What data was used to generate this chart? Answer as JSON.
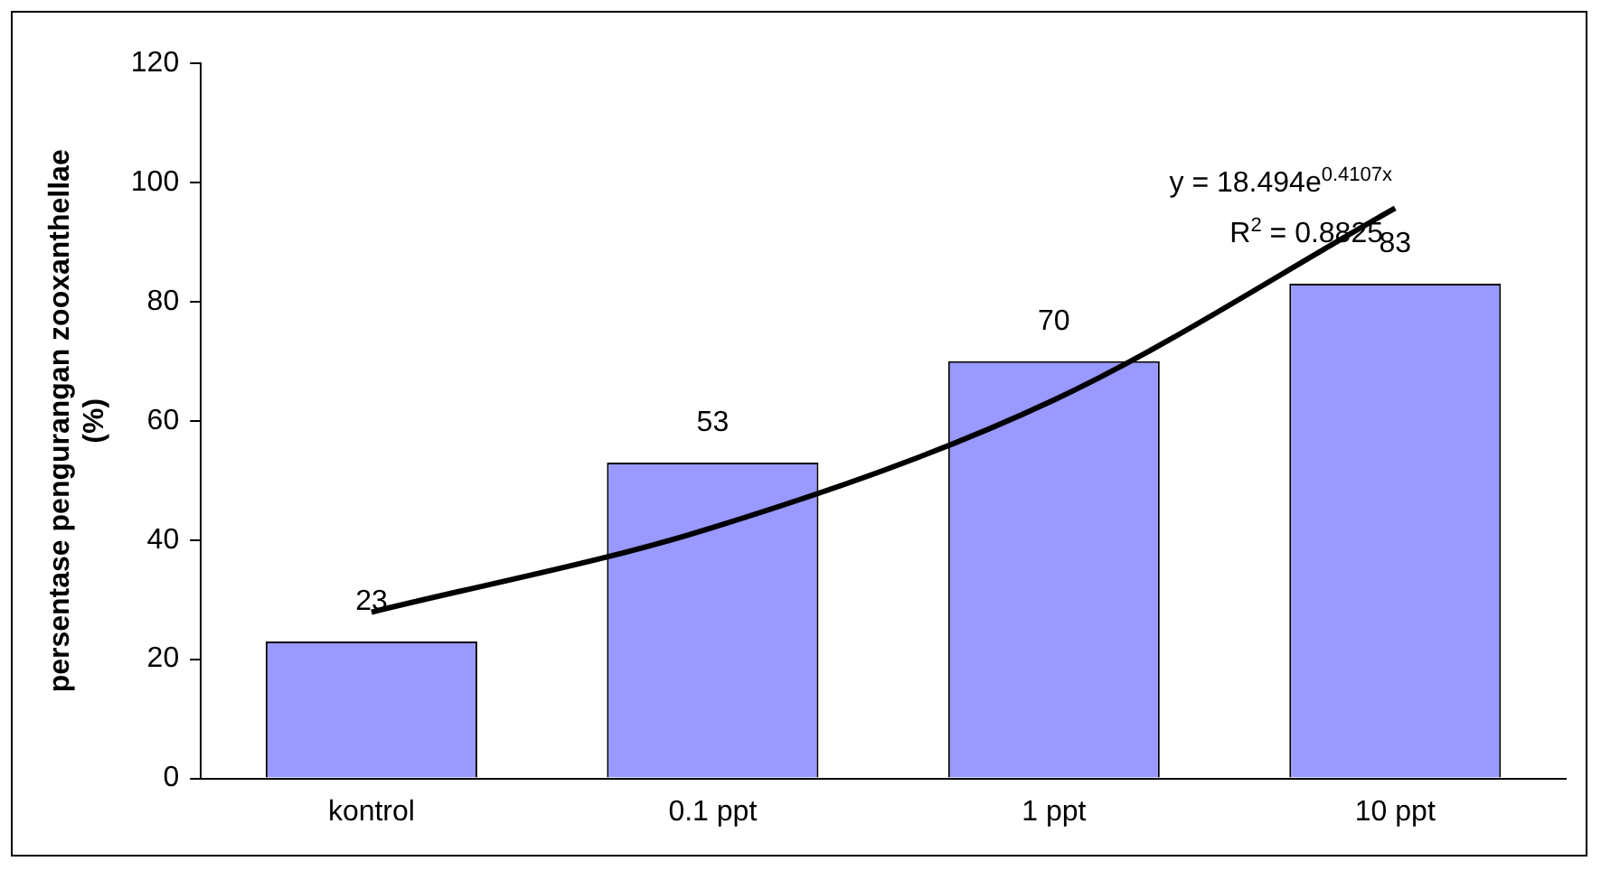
{
  "chart_data": {
    "type": "bar",
    "ylabel": "persentase pengurangan zooxanthellae\n(%)",
    "categories": [
      "kontrol",
      "0.1 ppt",
      "1 ppt",
      "10 ppt"
    ],
    "series": [
      {
        "color": "#9999ff",
        "values": [
          23,
          53,
          70,
          83
        ],
        "value_labels": [
          "23",
          "53",
          "70",
          "83"
        ]
      },
      {
        "type": "line",
        "color": "#000000",
        "x": [
          "kontrol",
          "0.1 ppt",
          "1 ppt",
          "10 ppt"
        ],
        "values": [
          27.9,
          42.1,
          63.5,
          95.7
        ]
      }
    ],
    "ylim": [
      0,
      120
    ],
    "yticks": [
      0,
      20,
      40,
      60,
      80,
      100,
      120
    ],
    "grid": false,
    "legend": false,
    "marker": "none",
    "annotations": [
      "y = 18.494e$^{0.4107x}$",
      "R$^{2}$ = 0.8825"
    ]
  }
}
